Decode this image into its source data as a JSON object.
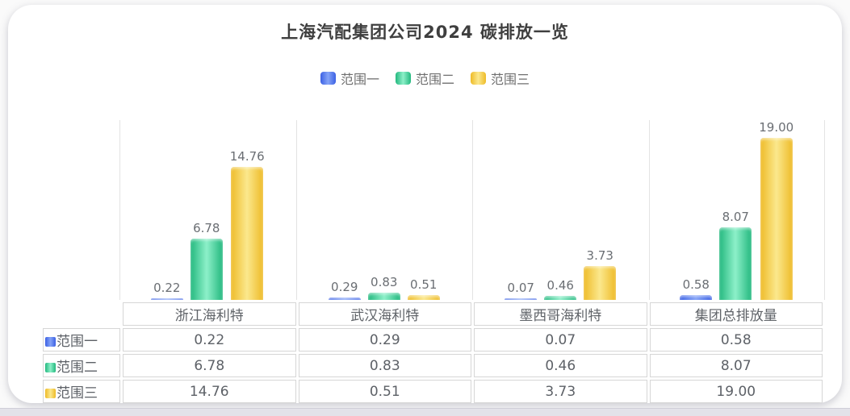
{
  "page": {
    "card": "chart-card"
  },
  "chart_data": {
    "type": "bar",
    "title": "上海汽配集团公司2024 碳排放一览",
    "categories": [
      "浙江海利特",
      "武汉海利特",
      "墨西哥海利特",
      "集团总排放量"
    ],
    "series": [
      {
        "name": "范围一",
        "color_edge": "#3c61e4",
        "color_mid": "#84a3f7",
        "values": [
          0.22,
          0.29,
          0.07,
          0.58
        ]
      },
      {
        "name": "范围二",
        "color_edge": "#23b87e",
        "color_mid": "#8df0c9",
        "values": [
          6.78,
          0.83,
          0.46,
          8.07
        ]
      },
      {
        "name": "范围三",
        "color_edge": "#eebb28",
        "color_mid": "#fbe88d",
        "values": [
          14.76,
          0.51,
          3.73,
          19.0
        ]
      }
    ],
    "xlabel": "",
    "ylabel": "",
    "ylim": [
      0,
      20
    ],
    "legend_position": "top",
    "legend_labels": [
      "范围一",
      "范围二",
      "范围三"
    ],
    "grid": "vertical-category-dividers",
    "value_labels_shown": true,
    "value_label_decimals": 2,
    "table_values": {
      "范围一": [
        "0.22",
        "0.29",
        "0.07",
        "0.58"
      ],
      "范围二": [
        "6.78",
        "0.83",
        "0.46",
        "8.07"
      ],
      "范围三": [
        "14.76",
        "0.51",
        "3.73",
        "19.00"
      ]
    }
  },
  "colors": {
    "title_text": "#3f3f3f",
    "legend_text": "#6f6f6f",
    "value_label_text": "#6a6e73",
    "table_text": "#5d6167",
    "table_border": "#d6d6d6",
    "gridline": "#e3e3e3",
    "card_background": "#ffffff",
    "page_background": "#fafafa",
    "bottom_strip": "#e3e2e9"
  }
}
